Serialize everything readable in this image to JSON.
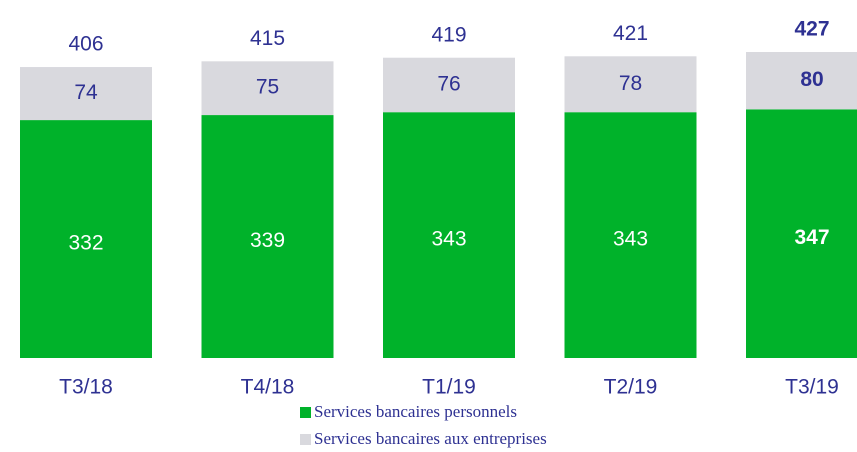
{
  "chart_data": {
    "type": "stacked_bar",
    "categories": [
      "T3/18",
      "T4/18",
      "T1/19",
      "T2/19",
      "T3/19"
    ],
    "series": [
      {
        "name": "Services bancaires personnels",
        "color": "#00b22a",
        "values": [
          332,
          339,
          343,
          343,
          347
        ]
      },
      {
        "name": "Services bancaires aux entreprises",
        "color": "#d9d9de",
        "values": [
          74,
          75,
          76,
          78,
          80
        ]
      }
    ],
    "totals": [
      406,
      415,
      419,
      421,
      427
    ]
  }
}
